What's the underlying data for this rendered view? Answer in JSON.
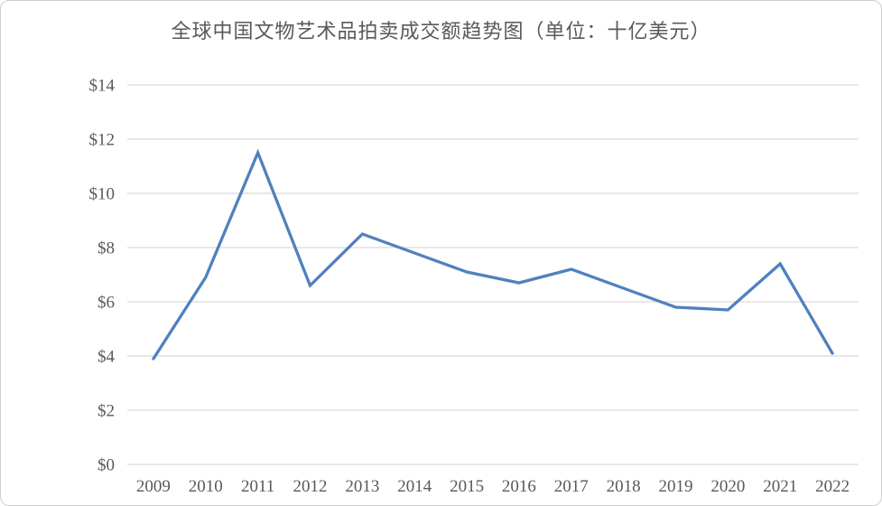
{
  "chart_data": {
    "type": "line",
    "title": "全球中国文物艺术品拍卖成交额趋势图（单位：十亿美元）",
    "categories": [
      "2009",
      "2010",
      "2011",
      "2012",
      "2013",
      "2014",
      "2015",
      "2016",
      "2017",
      "2018",
      "2019",
      "2020",
      "2021",
      "2022"
    ],
    "series": [
      {
        "name": "全球中国文物艺术品拍卖成交额",
        "values": [
          3.9,
          6.9,
          11.5,
          6.6,
          8.5,
          7.8,
          7.1,
          6.7,
          7.2,
          6.5,
          5.8,
          5.7,
          7.4,
          4.1
        ]
      }
    ],
    "xlabel": "",
    "ylabel": "",
    "ylim": [
      0,
      14
    ],
    "ytick_step": 2,
    "ytick_labels": [
      "$0",
      "$2",
      "$4",
      "$6",
      "$8",
      "$10",
      "$12",
      "$14"
    ],
    "grid": true,
    "legend": "none",
    "colors": {
      "line": "#4F81BD",
      "grid": "#D9D9D9",
      "text": "#595959"
    }
  }
}
